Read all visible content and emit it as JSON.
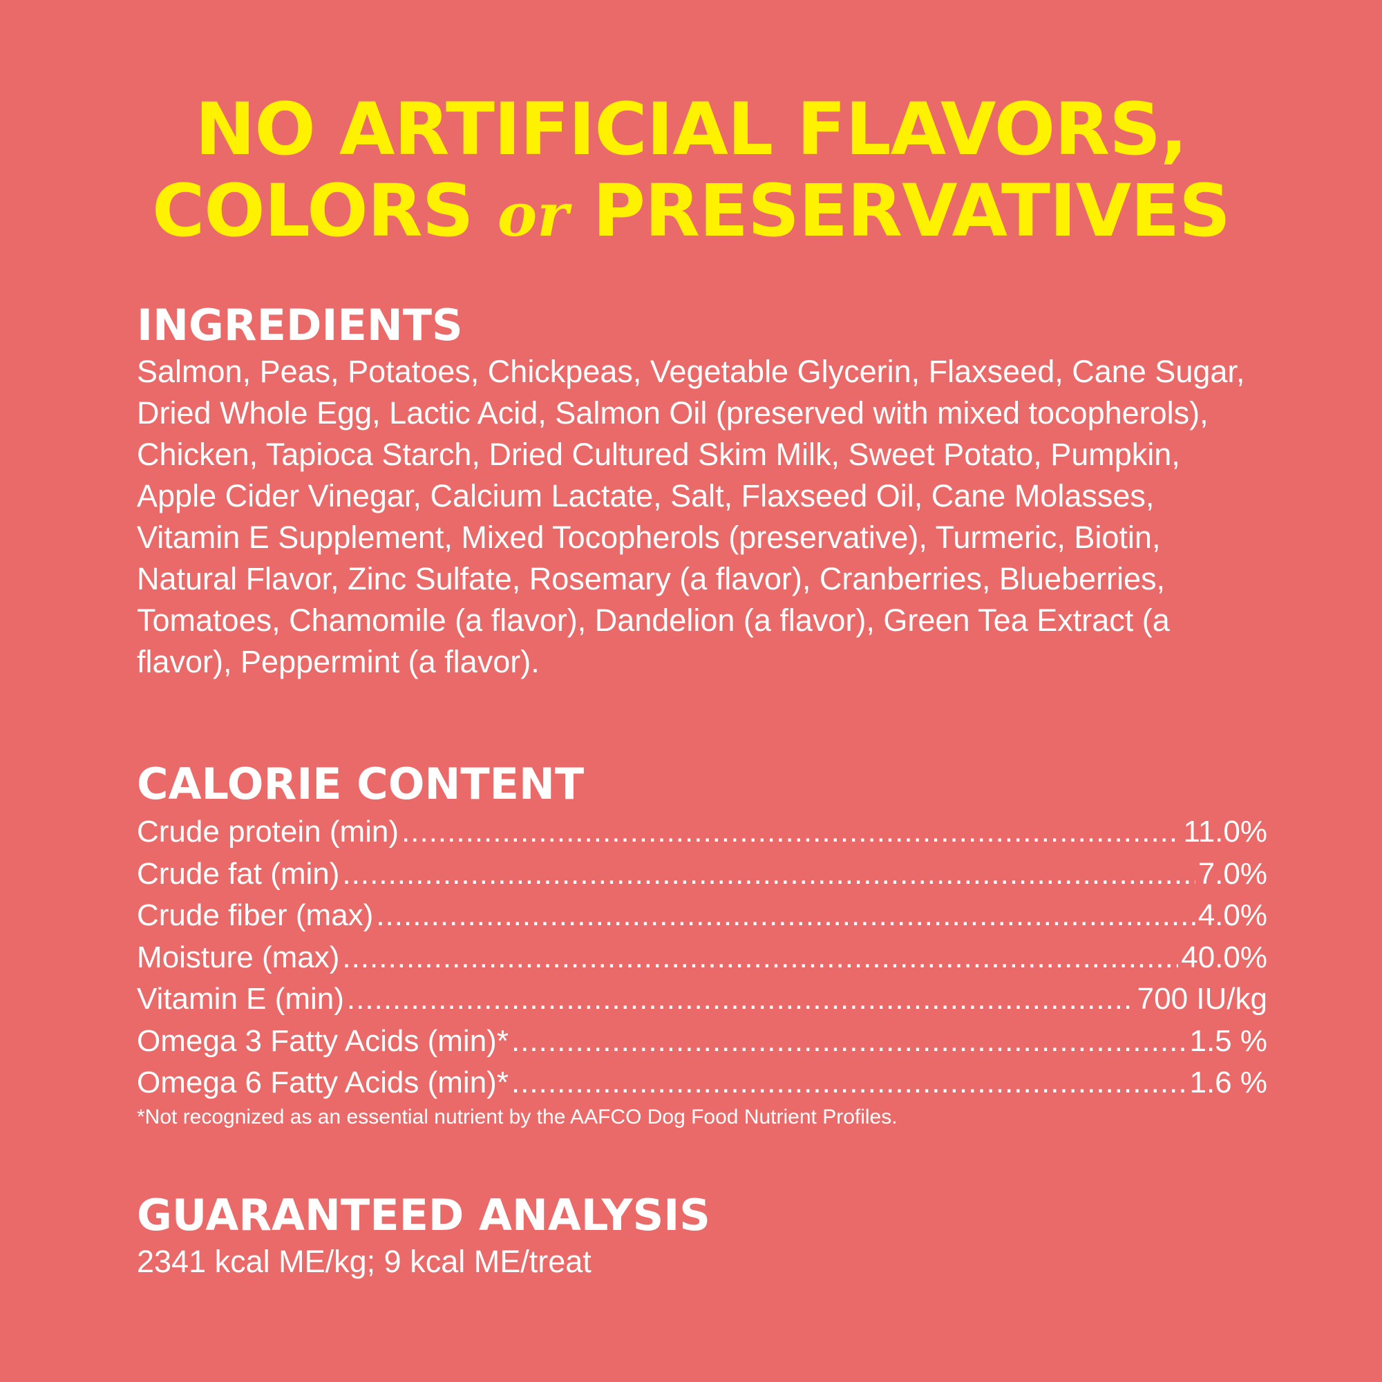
{
  "headline": {
    "line1": "NO ARTIFICIAL FLAVORS,",
    "line2_start": "COLORS",
    "line2_connector": "or",
    "line2_end": "PRESERVATIVES"
  },
  "ingredients": {
    "title": "INGREDIENTS",
    "text": "Salmon, Peas, Potatoes, Chickpeas, Vegetable Glycerin, Flaxseed, Cane Sugar, Dried Whole Egg, Lactic Acid, Salmon Oil (preserved with mixed tocopherols), Chicken, Tapioca Starch, Dried Cultured Skim Milk, Sweet Potato, Pumpkin, Apple Cider Vinegar, Calcium Lactate, Salt, Flaxseed Oil, Cane Molasses, Vitamin E Supplement, Mixed Tocopherols (preservative), Turmeric, Biotin, Natural Flavor, Zinc Sulfate, Rosemary (a flavor), Cranberries, Blueberries, Tomatoes, Chamomile (a flavor), Dandelion (a flavor), Green Tea Extract (a flavor), Peppermint (a flavor)."
  },
  "calorie_content": {
    "title": "CALORIE CONTENT",
    "rows": [
      {
        "label": "Crude protein (min)",
        "value": "11.0%"
      },
      {
        "label": "Crude fat (min)",
        "value": "7.0%"
      },
      {
        "label": "Crude fiber (max)",
        "value": "4.0%"
      },
      {
        "label": "Moisture (max)",
        "value": "40.0%"
      },
      {
        "label": "Vitamin E (min)",
        "value": "700 IU/kg"
      },
      {
        "label": "Omega 3 Fatty Acids (min)*",
        "value": "1.5 %"
      },
      {
        "label": "Omega 6 Fatty Acids (min)*",
        "value": "1.6 %"
      }
    ],
    "footnote": "*Not recognized as an essential nutrient by the AAFCO Dog Food Nutrient Profiles."
  },
  "guaranteed_analysis": {
    "title": "GUARANTEED ANALYSIS",
    "text": "2341 kcal ME/kg; 9 kcal ME/treat"
  },
  "colors": {
    "background": "#e96a68",
    "headline": "#fff200",
    "text": "#ffffff"
  }
}
